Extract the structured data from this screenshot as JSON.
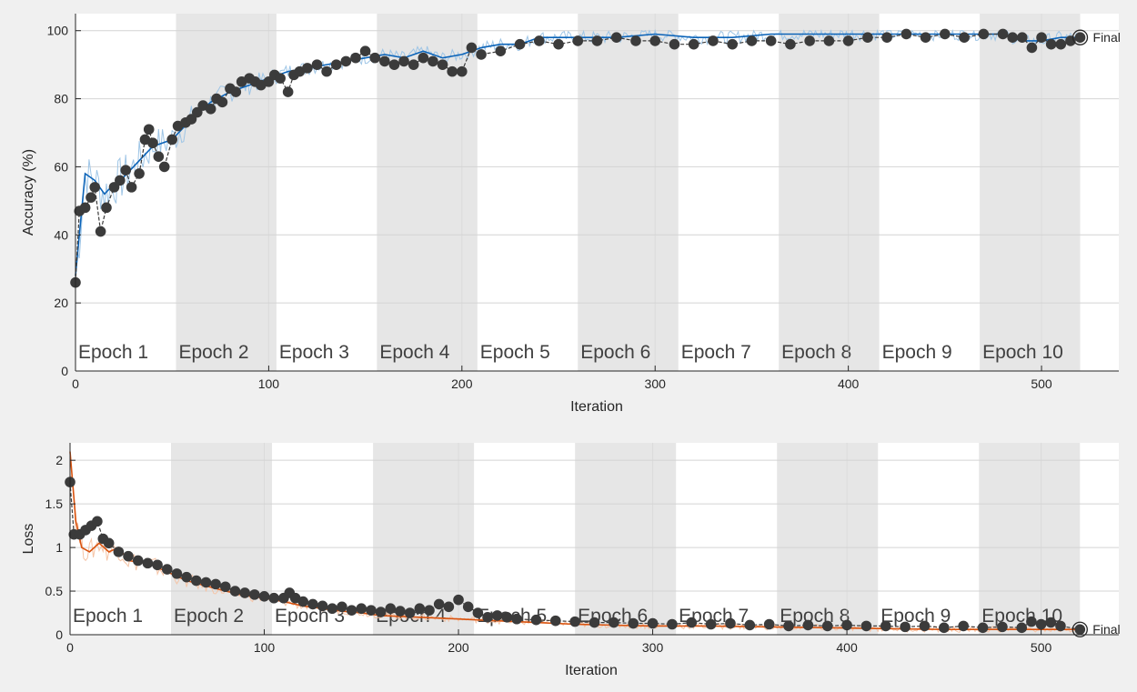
{
  "chart_data": [
    {
      "type": "line",
      "title": "",
      "xlabel": "Iteration",
      "ylabel": "Accuracy (%)",
      "xlim": [
        0,
        540
      ],
      "ylim": [
        0,
        105
      ],
      "xticks": [
        "0",
        "100",
        "200",
        "300",
        "400",
        "500"
      ],
      "yticks": [
        "0",
        "20",
        "40",
        "60",
        "80",
        "100"
      ],
      "grid": true,
      "epochs": [
        "Epoch 1",
        "Epoch 2",
        "Epoch 3",
        "Epoch 4",
        "Epoch 5",
        "Epoch 6",
        "Epoch 7",
        "Epoch 8",
        "Epoch 9",
        "Epoch 10"
      ],
      "epoch_length": 52,
      "final_label": "Final",
      "colors": {
        "raw": "#9ec5e6",
        "smoothed": "#0b63b8",
        "validation": "#3b3b3b",
        "band": "#e6e6e6"
      },
      "series": [
        {
          "kind": "smoothed",
          "x": [
            0,
            5,
            10,
            15,
            20,
            25,
            30,
            35,
            40,
            45,
            50,
            55,
            60,
            70,
            80,
            90,
            100,
            110,
            120,
            130,
            140,
            150,
            160,
            170,
            180,
            190,
            200,
            210,
            220,
            230,
            240,
            260,
            280,
            300,
            320,
            340,
            360,
            380,
            400,
            420,
            440,
            460,
            480,
            490,
            500,
            510,
            520
          ],
          "y": [
            28,
            58,
            56,
            52,
            55,
            57,
            60,
            63,
            66,
            67,
            68,
            71,
            74,
            79,
            82,
            84,
            86,
            88,
            89,
            90,
            91,
            92,
            93,
            92,
            94,
            92,
            93,
            95,
            96,
            96,
            98,
            98,
            98,
            99,
            98,
            98,
            99,
            99,
            99,
            99,
            99,
            99,
            99,
            97,
            97,
            98,
            98
          ]
        },
        {
          "kind": "validation",
          "x": [
            0,
            2,
            5,
            8,
            10,
            13,
            16,
            20,
            23,
            26,
            29,
            33,
            36,
            38,
            40,
            43,
            46,
            50,
            53,
            57,
            60,
            63,
            66,
            70,
            73,
            76,
            80,
            83,
            86,
            90,
            93,
            96,
            100,
            103,
            106,
            110,
            113,
            116,
            120,
            125,
            130,
            135,
            140,
            145,
            150,
            155,
            160,
            165,
            170,
            175,
            180,
            185,
            190,
            195,
            200,
            205,
            210,
            220,
            230,
            240,
            250,
            260,
            270,
            280,
            290,
            300,
            310,
            320,
            330,
            340,
            350,
            360,
            370,
            380,
            390,
            400,
            410,
            420,
            430,
            440,
            450,
            460,
            470,
            480,
            485,
            490,
            495,
            500,
            505,
            510,
            515,
            520
          ],
          "y": [
            26,
            47,
            48,
            51,
            54,
            41,
            48,
            54,
            56,
            59,
            54,
            58,
            68,
            71,
            67,
            63,
            60,
            68,
            72,
            73,
            74,
            76,
            78,
            77,
            80,
            79,
            83,
            82,
            85,
            86,
            85,
            84,
            85,
            87,
            86,
            82,
            87,
            88,
            89,
            90,
            88,
            90,
            91,
            92,
            94,
            92,
            91,
            90,
            91,
            90,
            92,
            91,
            90,
            88,
            88,
            95,
            93,
            94,
            96,
            97,
            96,
            97,
            97,
            98,
            97,
            97,
            96,
            96,
            97,
            96,
            97,
            97,
            96,
            97,
            97,
            97,
            98,
            98,
            99,
            98,
            99,
            98,
            99,
            99,
            98,
            98,
            95,
            98,
            96,
            96,
            97,
            98
          ]
        }
      ]
    },
    {
      "type": "line",
      "title": "",
      "xlabel": "Iteration",
      "ylabel": "Loss",
      "xlim": [
        0,
        540
      ],
      "ylim": [
        0,
        2.2
      ],
      "xticks": [
        "0",
        "100",
        "200",
        "300",
        "400",
        "500"
      ],
      "yticks": [
        "0",
        "0.5",
        "1",
        "1.5",
        "2"
      ],
      "grid": true,
      "epochs": [
        "Epoch 1",
        "Epoch 2",
        "Epoch 3",
        "Epoch 4",
        "Epoch 5",
        "Epoch 6",
        "Epoch 7",
        "Epoch 8",
        "Epoch 9",
        "Epoch 10"
      ],
      "epoch_length": 52,
      "final_label": "Final",
      "colors": {
        "raw": "#f5c4a6",
        "smoothed": "#d9530f",
        "validation": "#3b3b3b",
        "band": "#e6e6e6"
      },
      "series": [
        {
          "kind": "smoothed",
          "x": [
            0,
            3,
            6,
            10,
            15,
            20,
            25,
            30,
            40,
            50,
            60,
            70,
            80,
            90,
            100,
            110,
            120,
            130,
            140,
            150,
            160,
            180,
            200,
            220,
            240,
            260,
            280,
            300,
            330,
            360,
            390,
            420,
            450,
            480,
            500,
            520
          ],
          "y": [
            2.1,
            1.3,
            1.0,
            0.95,
            1.05,
            0.95,
            1.0,
            0.85,
            0.82,
            0.72,
            0.62,
            0.56,
            0.5,
            0.45,
            0.42,
            0.38,
            0.33,
            0.3,
            0.27,
            0.25,
            0.22,
            0.2,
            0.18,
            0.16,
            0.14,
            0.12,
            0.11,
            0.1,
            0.1,
            0.09,
            0.08,
            0.07,
            0.06,
            0.06,
            0.06,
            0.06
          ]
        },
        {
          "kind": "validation",
          "x": [
            0,
            2,
            5,
            8,
            11,
            14,
            17,
            20,
            25,
            30,
            35,
            40,
            45,
            50,
            55,
            60,
            65,
            70,
            75,
            80,
            85,
            90,
            95,
            100,
            105,
            110,
            113,
            116,
            120,
            125,
            130,
            135,
            140,
            145,
            150,
            155,
            160,
            165,
            170,
            175,
            180,
            185,
            190,
            195,
            200,
            205,
            210,
            215,
            220,
            225,
            230,
            240,
            250,
            260,
            270,
            280,
            290,
            300,
            310,
            320,
            330,
            340,
            350,
            360,
            370,
            380,
            390,
            400,
            410,
            420,
            430,
            440,
            450,
            460,
            470,
            480,
            490,
            495,
            500,
            505,
            510,
            520
          ],
          "y": [
            1.75,
            1.15,
            1.15,
            1.2,
            1.25,
            1.3,
            1.1,
            1.05,
            0.95,
            0.9,
            0.85,
            0.82,
            0.8,
            0.75,
            0.7,
            0.66,
            0.62,
            0.6,
            0.58,
            0.55,
            0.5,
            0.48,
            0.46,
            0.44,
            0.42,
            0.42,
            0.48,
            0.42,
            0.38,
            0.35,
            0.33,
            0.3,
            0.32,
            0.28,
            0.3,
            0.28,
            0.26,
            0.3,
            0.27,
            0.25,
            0.3,
            0.28,
            0.35,
            0.32,
            0.4,
            0.32,
            0.25,
            0.2,
            0.22,
            0.2,
            0.18,
            0.17,
            0.16,
            0.15,
            0.14,
            0.14,
            0.13,
            0.13,
            0.12,
            0.14,
            0.12,
            0.13,
            0.11,
            0.12,
            0.1,
            0.11,
            0.1,
            0.11,
            0.1,
            0.1,
            0.09,
            0.1,
            0.08,
            0.1,
            0.08,
            0.09,
            0.08,
            0.15,
            0.12,
            0.14,
            0.1,
            0.06
          ]
        }
      ]
    }
  ]
}
